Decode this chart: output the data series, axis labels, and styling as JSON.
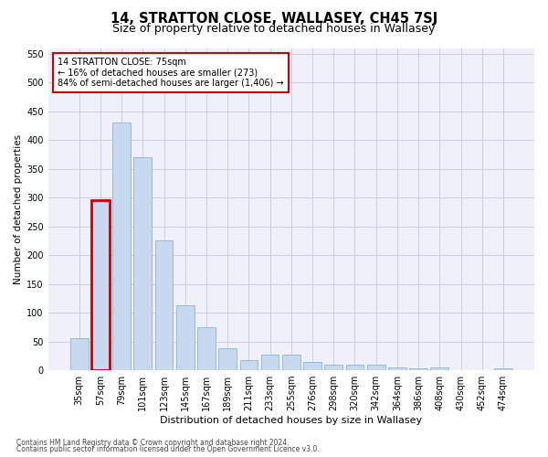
{
  "title": "14, STRATTON CLOSE, WALLASEY, CH45 7SJ",
  "subtitle": "Size of property relative to detached houses in Wallasey",
  "xlabel": "Distribution of detached houses by size in Wallasey",
  "ylabel": "Number of detached properties",
  "footer_line1": "Contains HM Land Registry data © Crown copyright and database right 2024.",
  "footer_line2": "Contains public sector information licensed under the Open Government Licence v3.0.",
  "annotation_title": "14 STRATTON CLOSE: 75sqm",
  "annotation_line1": "← 16% of detached houses are smaller (273)",
  "annotation_line2": "84% of semi-detached houses are larger (1,406) →",
  "highlight_bar_index": 1,
  "bar_color": "#c8d8ee",
  "bar_edge_color": "#7aaace",
  "highlight_edge_color": "#cc0000",
  "annotation_box_edge": "#cc0000",
  "categories": [
    "35sqm",
    "57sqm",
    "79sqm",
    "101sqm",
    "123sqm",
    "145sqm",
    "167sqm",
    "189sqm",
    "211sqm",
    "233sqm",
    "255sqm",
    "276sqm",
    "298sqm",
    "320sqm",
    "342sqm",
    "364sqm",
    "386sqm",
    "408sqm",
    "430sqm",
    "452sqm",
    "474sqm"
  ],
  "values": [
    55,
    295,
    430,
    370,
    225,
    113,
    75,
    38,
    17,
    27,
    27,
    14,
    9,
    9,
    9,
    5,
    3,
    5,
    0,
    0,
    4
  ],
  "ylim": [
    0,
    560
  ],
  "yticks": [
    0,
    50,
    100,
    150,
    200,
    250,
    300,
    350,
    400,
    450,
    500,
    550
  ],
  "grid_color": "#c8c8d8",
  "bg_color": "#f0f0fa",
  "title_fontsize": 10.5,
  "subtitle_fontsize": 9,
  "tick_fontsize": 7,
  "ylabel_fontsize": 7.5,
  "xlabel_fontsize": 8,
  "annotation_fontsize": 7,
  "footer_fontsize": 5.5
}
